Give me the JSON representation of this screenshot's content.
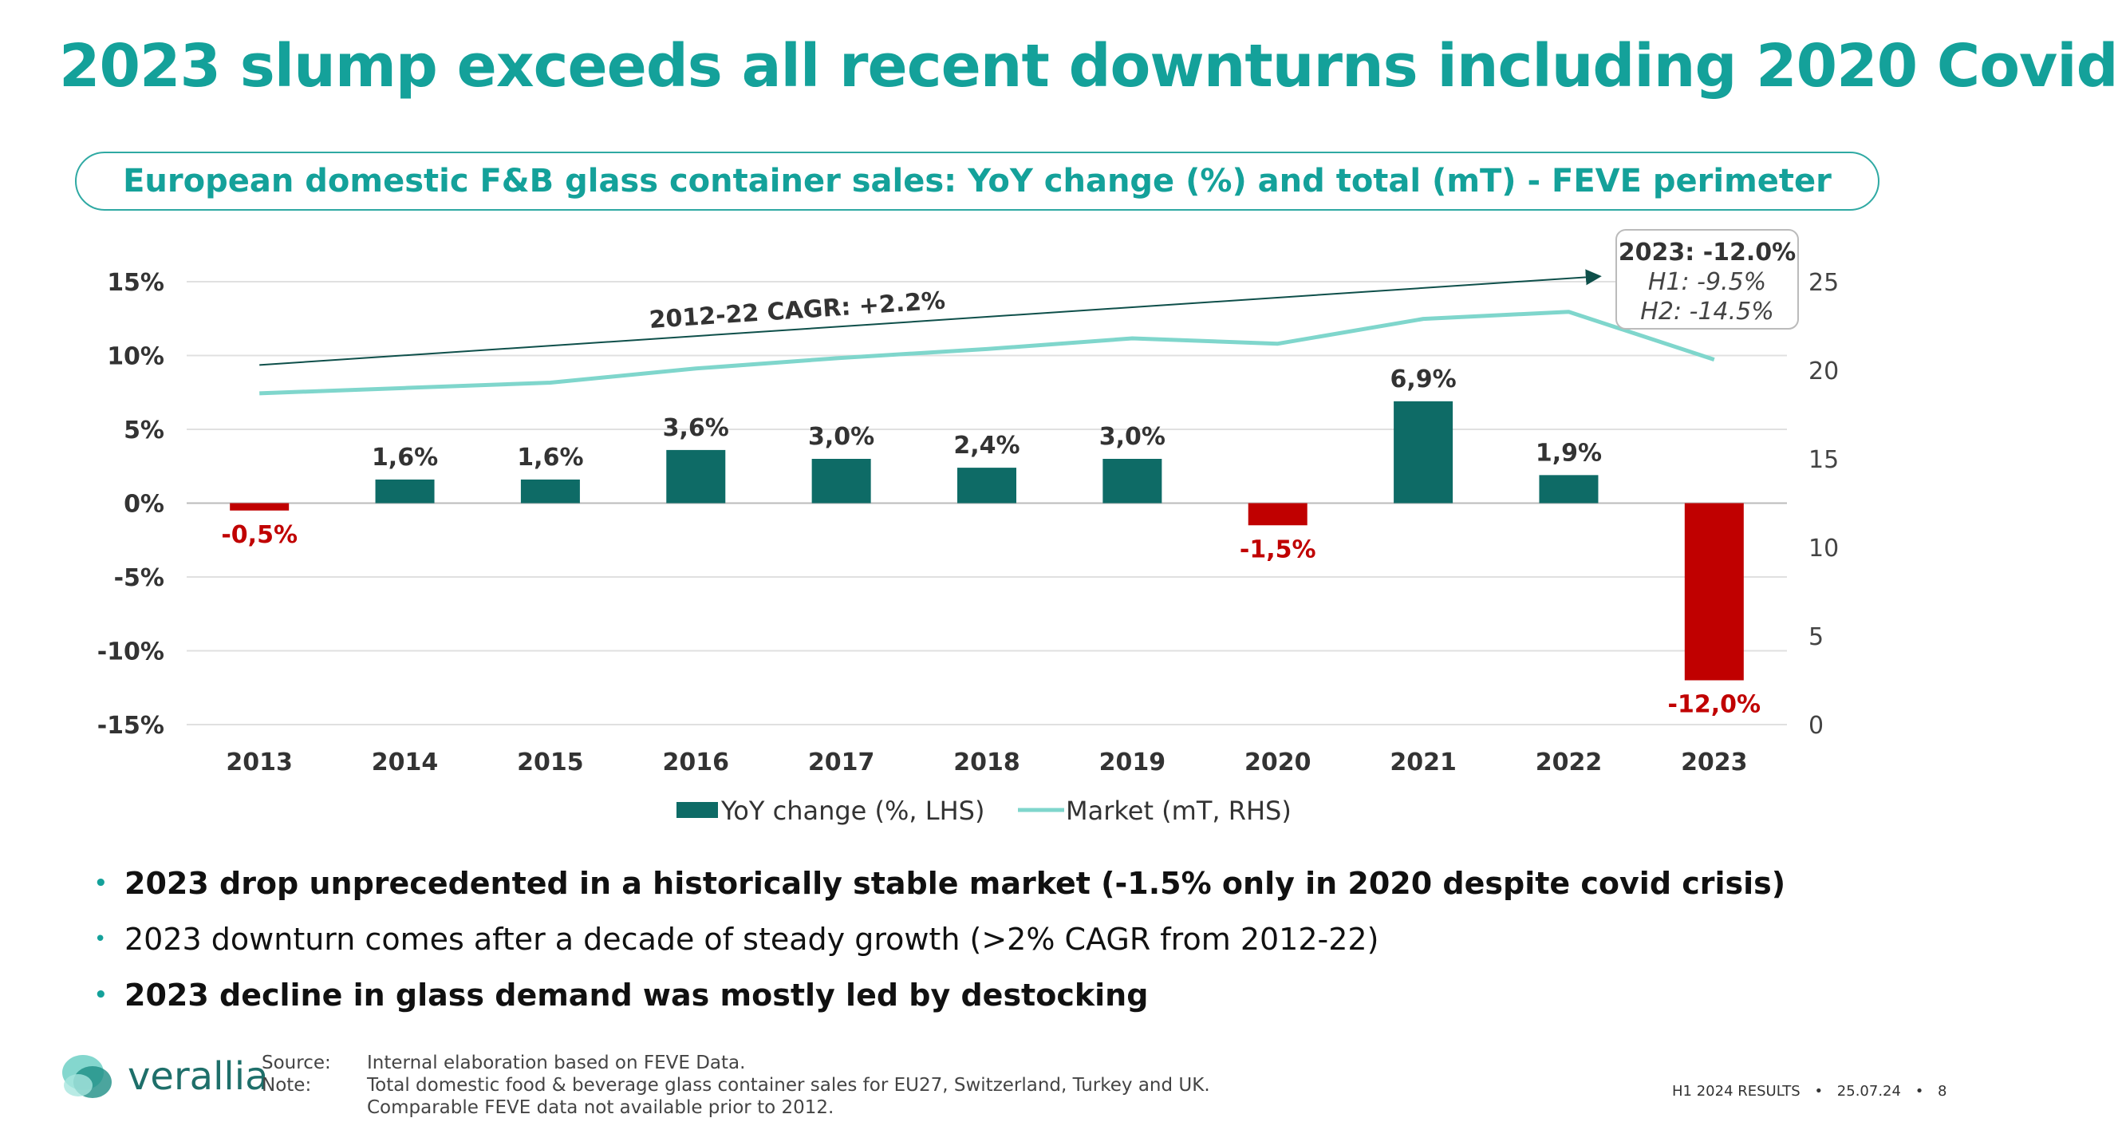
{
  "title": "2023 slump exceeds all recent downturns including 2020 Covid",
  "subtitle": "European domestic F&B glass container sales: YoY change (%) and total (mT) - FEVE perimeter",
  "colors": {
    "accent": "#14A19A",
    "bar_positive": "#0E6B66",
    "bar_negative": "#C00000",
    "line_market": "#7FD6CC",
    "cagr_line": "#0E4F4A"
  },
  "chart_data": {
    "type": "bar",
    "categories": [
      "2013",
      "2014",
      "2015",
      "2016",
      "2017",
      "2018",
      "2019",
      "2020",
      "2021",
      "2022",
      "2023"
    ],
    "series": [
      {
        "name": "YoY change (%, LHS)",
        "type": "bar",
        "axis": "left",
        "values": [
          -0.5,
          1.6,
          1.6,
          3.6,
          3.0,
          2.4,
          3.0,
          -1.5,
          6.9,
          1.9,
          -12.0
        ],
        "labels": [
          "-0,5%",
          "1,6%",
          "1,6%",
          "3,6%",
          "3,0%",
          "2,4%",
          "3,0%",
          "-1,5%",
          "6,9%",
          "1,9%",
          "-12,0%"
        ]
      },
      {
        "name": "Market (mT, RHS)",
        "type": "line",
        "axis": "right",
        "values": [
          18.7,
          19.0,
          19.3,
          20.1,
          20.7,
          21.2,
          21.8,
          21.5,
          22.9,
          23.3,
          20.6
        ]
      }
    ],
    "y_left": {
      "ticks": [
        "15%",
        "10%",
        "5%",
        "0%",
        "-5%",
        "-10%",
        "-15%"
      ],
      "values": [
        15,
        10,
        5,
        0,
        -5,
        -10,
        -15
      ],
      "ylim": [
        -15,
        15
      ]
    },
    "y_right": {
      "ticks": [
        "25",
        "20",
        "15",
        "10",
        "5",
        "0"
      ],
      "values": [
        25,
        20,
        15,
        10,
        5,
        0
      ],
      "ylim": [
        0,
        25
      ]
    },
    "annotations": {
      "cagr_label": "2012-22 CAGR: +2.2%",
      "cagr_from": {
        "x": "2013",
        "y_right": 20.3
      },
      "cagr_to": {
        "x": "2023",
        "y_right": 25.3
      },
      "callout": [
        "2023: -12.0%",
        "H1: -9.5%",
        "H2: -14.5%"
      ]
    },
    "grid": true,
    "legend": "bottom"
  },
  "bullets": [
    {
      "text": "2023 drop unprecedented in a historically stable market (-1.5% only in 2020 despite covid crisis)",
      "bold": true
    },
    {
      "text": "2023 downturn comes after a decade of steady growth (>2% CAGR from 2012-22)",
      "bold": false
    },
    {
      "text": "2023 decline in glass demand was mostly led by destocking",
      "bold": true
    }
  ],
  "notes": {
    "source_label": "Source:",
    "source_text": "Internal elaboration based on FEVE Data.",
    "note_label": "Note:",
    "note_line1": "Total domestic food & beverage glass container sales for EU27, Switzerland, Turkey and UK.",
    "note_line2": "Comparable FEVE data not available prior to 2012."
  },
  "logo_text": "verallia",
  "footer": {
    "report": "H1 2024 RESULTS",
    "date": "25.07.24",
    "page": "8"
  }
}
